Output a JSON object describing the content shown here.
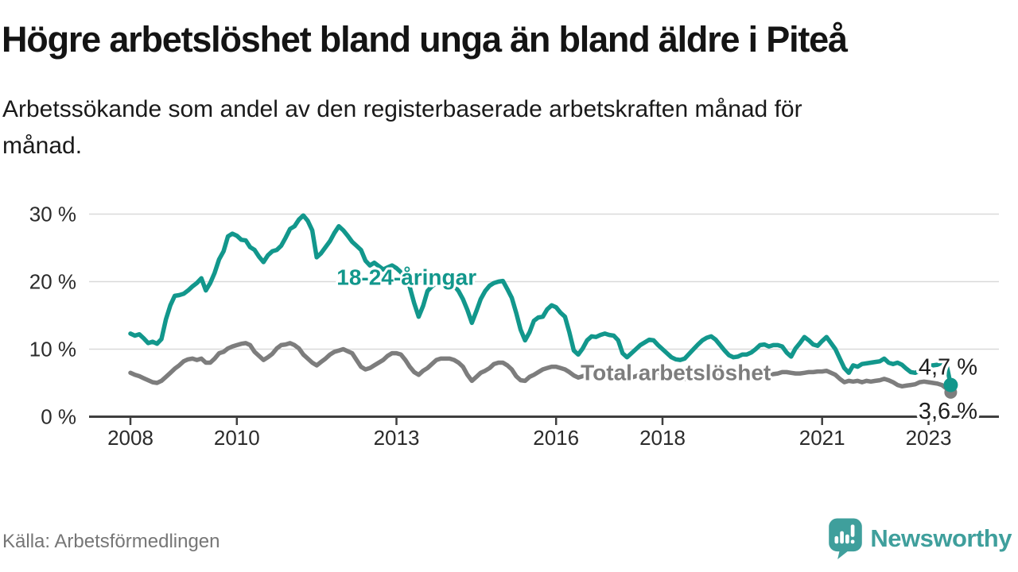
{
  "header": {
    "title": "Högre arbetslöshet bland unga än bland äldre i Piteå",
    "subtitle_lines": [
      "Arbetssökande som andel av den registerbaserade arbetskraften månad för",
      "månad."
    ]
  },
  "footer": {
    "source": "Källa: Arbetsförmedlingen",
    "brand": "Newsworthy"
  },
  "colors": {
    "youth_teal": "#12978c",
    "total_gray": "#7d7d7d",
    "brand_teal": "#3f9f9c",
    "grid": "#d9d9d9",
    "axis": "#3f3f3f",
    "tick_text": "#2b2b2b",
    "end_label_text": "#1f1f1f"
  },
  "chart_data": {
    "type": "line",
    "x_unit": "month",
    "x_start_year": 2008,
    "x_step_months": 1,
    "x_end": "2023-06",
    "ylim": [
      0,
      31.5
    ],
    "grid": "horizontal",
    "y_ticks": [
      {
        "value": 0,
        "label": "0 %"
      },
      {
        "value": 10,
        "label": "10 %"
      },
      {
        "value": 20,
        "label": "20 %"
      },
      {
        "value": 30,
        "label": "30 %"
      }
    ],
    "x_ticks": [
      {
        "value": 2008,
        "label": "2008"
      },
      {
        "value": 2010,
        "label": "2010"
      },
      {
        "value": 2013,
        "label": "2013"
      },
      {
        "value": 2016,
        "label": "2016"
      },
      {
        "value": 2018,
        "label": "2018"
      },
      {
        "value": 2021,
        "label": "2021"
      },
      {
        "value": 2023,
        "label": "2023"
      }
    ],
    "series": [
      {
        "id": "total",
        "name": "Total arbetslöshet",
        "color": "#7d7d7d",
        "line_label": {
          "x": 2018.25,
          "y": 6.6,
          "text": "Total arbetslöshet"
        },
        "end_label": "3,6 %",
        "end_value": 3.6,
        "values": [
          6.5,
          6.2,
          6.0,
          5.7,
          5.4,
          5.1,
          5.0,
          5.3,
          5.9,
          6.5,
          7.1,
          7.6,
          8.2,
          8.5,
          8.6,
          8.4,
          8.6,
          8.0,
          8.0,
          8.6,
          9.4,
          9.6,
          10.1,
          10.4,
          10.6,
          10.8,
          10.9,
          10.6,
          9.6,
          9.0,
          8.4,
          8.8,
          9.3,
          10.1,
          10.6,
          10.7,
          10.9,
          10.6,
          10.1,
          9.2,
          8.6,
          8.0,
          7.6,
          8.1,
          8.6,
          9.2,
          9.6,
          9.8,
          10.0,
          9.7,
          9.4,
          8.4,
          7.4,
          7.0,
          7.2,
          7.6,
          8.0,
          8.4,
          9.0,
          9.4,
          9.4,
          9.2,
          8.4,
          7.4,
          6.6,
          6.2,
          6.8,
          7.2,
          7.8,
          8.4,
          8.6,
          8.6,
          8.6,
          8.4,
          8.0,
          7.4,
          6.2,
          5.3,
          5.9,
          6.5,
          6.8,
          7.2,
          7.8,
          8.0,
          8.0,
          7.6,
          7.0,
          6.0,
          5.4,
          5.3,
          5.9,
          6.2,
          6.6,
          7.0,
          7.2,
          7.4,
          7.4,
          7.2,
          7.0,
          6.6,
          6.1,
          5.8,
          6.0,
          6.2,
          6.4,
          6.6,
          6.8,
          7.0,
          7.0,
          6.9,
          6.7,
          6.4,
          6.0,
          5.8,
          6.0,
          6.2,
          6.4,
          6.5,
          6.6,
          6.6,
          6.5,
          6.3,
          6.1,
          5.9,
          5.7,
          5.6,
          5.8,
          5.9,
          6.0,
          6.1,
          6.2,
          6.2,
          6.1,
          6.0,
          5.9,
          5.8,
          5.6,
          5.6,
          5.7,
          5.8,
          5.9,
          6.0,
          6.1,
          6.2,
          6.2,
          6.3,
          6.4,
          6.6,
          6.6,
          6.5,
          6.4,
          6.4,
          6.5,
          6.6,
          6.6,
          6.7,
          6.7,
          6.8,
          6.5,
          6.2,
          5.6,
          5.1,
          5.3,
          5.2,
          5.3,
          5.1,
          5.3,
          5.2,
          5.3,
          5.4,
          5.6,
          5.4,
          5.1,
          4.7,
          4.5,
          4.6,
          4.7,
          4.8,
          5.1,
          5.2,
          5.1,
          5.0,
          4.9,
          4.7,
          4.2,
          3.6
        ]
      },
      {
        "id": "youth",
        "name": "18-24-åringar",
        "color": "#12978c",
        "line_label": {
          "x": 2013.19,
          "y": 20.7,
          "text": "18-24-åringar"
        },
        "end_label": "4,7 %",
        "end_value": 4.7,
        "values": [
          12.3,
          12.0,
          12.2,
          11.6,
          10.9,
          11.1,
          10.8,
          11.5,
          14.4,
          16.5,
          17.9,
          18.0,
          18.2,
          18.7,
          19.3,
          19.8,
          20.5,
          18.7,
          19.8,
          21.3,
          23.3,
          24.5,
          26.7,
          27.1,
          26.8,
          26.2,
          26.1,
          25.1,
          24.7,
          23.7,
          22.9,
          23.9,
          24.5,
          24.7,
          25.3,
          26.5,
          27.8,
          28.2,
          29.2,
          29.8,
          29.0,
          27.6,
          23.6,
          24.2,
          25.1,
          26.0,
          27.2,
          28.2,
          27.6,
          26.8,
          25.9,
          25.3,
          24.7,
          23.1,
          22.4,
          22.8,
          22.3,
          21.8,
          22.1,
          22.4,
          22.0,
          21.4,
          20.6,
          19.2,
          16.8,
          14.8,
          16.4,
          18.6,
          19.3,
          19.8,
          20.0,
          20.2,
          20.0,
          19.4,
          18.6,
          17.4,
          15.8,
          13.9,
          15.6,
          17.4,
          18.6,
          19.4,
          19.8,
          20.0,
          20.1,
          18.9,
          17.6,
          15.4,
          12.9,
          11.3,
          12.5,
          14.2,
          14.7,
          14.8,
          15.9,
          16.5,
          16.2,
          15.4,
          14.8,
          12.5,
          9.8,
          9.2,
          10.1,
          11.3,
          11.9,
          11.8,
          12.1,
          12.3,
          12.1,
          12.0,
          11.3,
          9.4,
          8.8,
          9.4,
          10.0,
          10.6,
          11.0,
          11.4,
          11.3,
          10.6,
          10.0,
          9.4,
          8.8,
          8.5,
          8.4,
          8.6,
          9.3,
          10.0,
          10.7,
          11.3,
          11.7,
          11.9,
          11.4,
          10.6,
          9.8,
          9.1,
          8.8,
          8.9,
          9.2,
          9.2,
          9.5,
          10.0,
          10.6,
          10.7,
          10.4,
          10.6,
          10.6,
          10.4,
          9.5,
          8.9,
          10.1,
          10.9,
          11.8,
          11.3,
          10.7,
          10.5,
          11.2,
          11.8,
          10.9,
          10.0,
          8.6,
          7.2,
          6.5,
          7.6,
          7.4,
          7.8,
          7.9,
          8.0,
          8.1,
          8.2,
          8.6,
          8.0,
          7.8,
          8.0,
          7.7,
          7.1,
          6.6,
          6.5,
          6.8,
          7.4,
          7.5,
          7.6,
          7.7,
          8.0,
          7.9,
          4.7
        ]
      }
    ]
  }
}
